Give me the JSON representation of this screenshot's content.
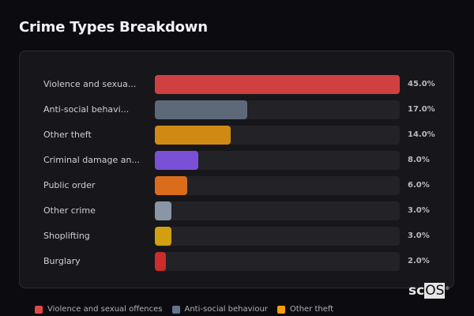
{
  "header": {
    "title": "Crime Types Breakdown"
  },
  "brand": {
    "prefix": "sc",
    "suffix": "OS",
    "registered": "®"
  },
  "rows": [
    {
      "label": "Violence and sexua...",
      "value": 45.0,
      "value_label": "45.0%",
      "color": "#d04040"
    },
    {
      "label": "Anti-social behavi...",
      "value": 17.0,
      "value_label": "17.0%",
      "color": "#5d6879"
    },
    {
      "label": "Other theft",
      "value": 14.0,
      "value_label": "14.0%",
      "color": "#d08a14"
    },
    {
      "label": "Criminal damage an...",
      "value": 8.0,
      "value_label": "8.0%",
      "color": "#7a50d6"
    },
    {
      "label": "Public order",
      "value": 6.0,
      "value_label": "6.0%",
      "color": "#da6c1c"
    },
    {
      "label": "Other crime",
      "value": 3.0,
      "value_label": "3.0%",
      "color": "#8a96a8"
    },
    {
      "label": "Shoplifting",
      "value": 3.0,
      "value_label": "3.0%",
      "color": "#d0a010"
    },
    {
      "label": "Burglary",
      "value": 2.0,
      "value_label": "2.0%",
      "color": "#cc2c2c"
    }
  ],
  "legend": [
    {
      "label": "Violence and sexual offences",
      "color": "#e04848"
    },
    {
      "label": "Anti-social behaviour",
      "color": "#64748b"
    },
    {
      "label": "Other theft",
      "color": "#f59e0b"
    }
  ],
  "chart_data": {
    "type": "bar",
    "orientation": "horizontal",
    "title": "Crime Types Breakdown",
    "categories": [
      "Violence and sexual offences",
      "Anti-social behaviour",
      "Other theft",
      "Criminal damage and arson",
      "Public order",
      "Other crime",
      "Shoplifting",
      "Burglary"
    ],
    "category_labels_displayed": [
      "Violence and sexua...",
      "Anti-social behavi...",
      "Other theft",
      "Criminal damage an...",
      "Public order",
      "Other crime",
      "Shoplifting",
      "Burglary"
    ],
    "values": [
      45.0,
      17.0,
      14.0,
      8.0,
      6.0,
      3.0,
      3.0,
      2.0
    ],
    "value_labels": [
      "45.0%",
      "17.0%",
      "14.0%",
      "8.0%",
      "6.0%",
      "3.0%",
      "3.0%",
      "2.0%"
    ],
    "unit": "%",
    "xlabel": "",
    "ylabel": "",
    "xlim": [
      0,
      45
    ],
    "grid": false,
    "legend": {
      "position": "bottom",
      "entries": [
        "Violence and sexual offences",
        "Anti-social behaviour",
        "Other theft"
      ]
    }
  }
}
